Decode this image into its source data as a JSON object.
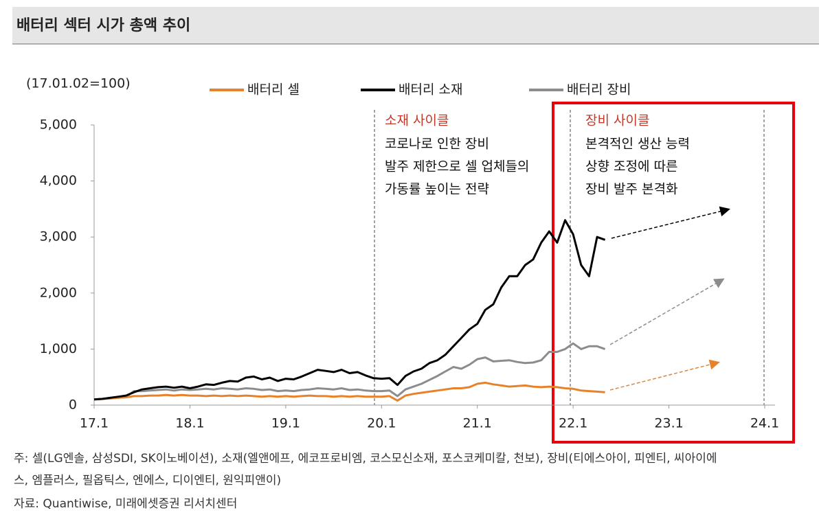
{
  "chart_data": {
    "type": "line",
    "title": "배터리 섹터 시가 총액 추이",
    "unit_label": "(17.01.02=100)",
    "categories": [
      "17.1",
      null,
      null,
      null,
      null,
      null,
      null,
      null,
      null,
      null,
      null,
      null,
      "18.1",
      null,
      null,
      null,
      null,
      null,
      null,
      null,
      null,
      null,
      null,
      null,
      "19.1",
      null,
      null,
      null,
      null,
      null,
      null,
      null,
      null,
      null,
      null,
      null,
      "20.1",
      null,
      null,
      null,
      null,
      null,
      null,
      null,
      null,
      null,
      null,
      null,
      "21.1",
      null,
      null,
      null,
      null,
      null,
      null,
      null,
      null,
      null,
      null,
      null,
      "22.1",
      null,
      null,
      null,
      null,
      null,
      null,
      null,
      null,
      null,
      null,
      null,
      "23.1",
      null,
      null,
      null,
      null,
      null,
      null,
      null,
      null,
      null,
      null,
      null,
      "24.1"
    ],
    "ylim": [
      0,
      5000
    ],
    "yticks": [
      0,
      {
        "value": 1000,
        "label": "1,000"
      },
      {
        "value": 2000,
        "label": "2,000"
      },
      {
        "value": 3000,
        "label": "3,000"
      },
      {
        "value": 4000,
        "label": "4,000"
      },
      {
        "value": 5000,
        "label": "5,000"
      }
    ],
    "series": [
      {
        "name": "배터리 셀",
        "color": "#e8822a",
        "values": [
          100,
          110,
          120,
          130,
          140,
          160,
          160,
          170,
          170,
          180,
          170,
          180,
          170,
          170,
          160,
          170,
          160,
          170,
          160,
          170,
          160,
          150,
          160,
          150,
          160,
          150,
          160,
          170,
          160,
          160,
          150,
          160,
          150,
          160,
          150,
          150,
          150,
          160,
          80,
          170,
          200,
          220,
          240,
          260,
          280,
          300,
          300,
          320,
          380,
          400,
          370,
          350,
          330,
          340,
          350,
          330,
          320,
          330,
          320,
          300,
          290,
          260,
          250,
          240,
          230,
          null,
          null,
          null,
          null,
          null,
          null,
          null,
          null,
          null,
          null,
          null,
          null,
          null,
          null,
          null,
          null,
          null,
          null,
          null,
          null
        ]
      },
      {
        "name": "배터리 소재",
        "color": "#000000",
        "values": [
          100,
          110,
          130,
          150,
          170,
          230,
          280,
          300,
          320,
          330,
          310,
          330,
          300,
          330,
          370,
          360,
          400,
          430,
          420,
          490,
          510,
          460,
          490,
          430,
          470,
          460,
          510,
          570,
          630,
          610,
          590,
          630,
          570,
          590,
          530,
          480,
          470,
          480,
          360,
          520,
          600,
          650,
          750,
          800,
          900,
          1050,
          1200,
          1350,
          1450,
          1700,
          1800,
          2100,
          2300,
          2300,
          2500,
          2600,
          2900,
          3100,
          2900,
          3300,
          3050,
          2500,
          2300,
          3000,
          2950,
          null,
          null,
          null,
          null,
          null,
          null,
          null,
          null,
          null,
          null,
          null,
          null,
          null,
          null,
          null,
          null,
          null,
          null,
          null,
          null
        ]
      },
      {
        "name": "배터리 장비",
        "color": "#8c8c8c",
        "values": [
          100,
          110,
          120,
          130,
          150,
          250,
          250,
          260,
          270,
          280,
          260,
          280,
          270,
          280,
          290,
          280,
          300,
          290,
          280,
          300,
          290,
          270,
          280,
          250,
          260,
          250,
          270,
          280,
          300,
          290,
          280,
          300,
          270,
          280,
          260,
          250,
          250,
          260,
          160,
          280,
          330,
          380,
          450,
          520,
          600,
          680,
          650,
          720,
          820,
          850,
          780,
          790,
          800,
          770,
          750,
          760,
          800,
          950,
          950,
          1000,
          1100,
          1000,
          1050,
          1050,
          1000,
          null,
          null,
          null,
          null,
          null,
          null,
          null,
          null,
          null,
          null,
          null,
          null,
          null,
          null,
          null,
          null,
          null,
          null,
          null,
          null
        ]
      }
    ],
    "annotations": [
      {
        "title": "소재 사이클",
        "lines": [
          "코로나로 인한 장비",
          "발주 제한으로 셀 업체들의",
          "가동률 높이는 전략"
        ]
      },
      {
        "title": "장비 사이클",
        "lines": [
          "본격적인 생산 능력",
          "상향 조정에 따른",
          "장비 발주 본격화"
        ]
      }
    ]
  },
  "footnotes": [
    "주: 셀(LG엔솔, 삼성SDI, SK이노베이션), 소재(엘앤에프, 에코프로비엠, 코스모신소재, 포스코케미칼, 천보), 장비(티에스아이, 피엔티, 씨아이에",
    "스, 엠플러스, 필옵틱스, 엔에스, 디이엔티, 원익피앤이)",
    "자료: Quantiwise, 미래에셋증권 리서치센터"
  ]
}
